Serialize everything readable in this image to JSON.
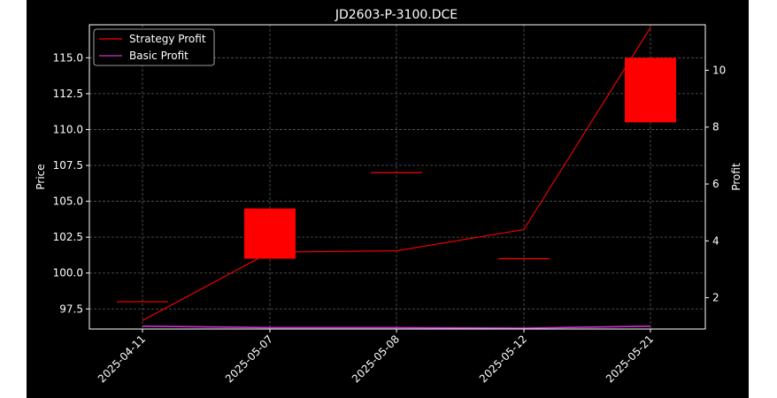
{
  "chart_data": {
    "type": "candlestick+line",
    "title": "JD2603-P-3100.DCE",
    "xlabel": "",
    "ylabel_left": "Price",
    "ylabel_right": "Profit",
    "categories": [
      "2025-04-11",
      "2025-05-07",
      "2025-05-08",
      "2025-05-12",
      "2025-05-21"
    ],
    "ylim_left": [
      96.1,
      117.3
    ],
    "yticks_left": [
      "97.5",
      "100.0",
      "102.5",
      "105.0",
      "107.5",
      "110.0",
      "112.5",
      "115.0"
    ],
    "ylim_right": [
      0.9,
      11.6
    ],
    "yticks_right": [
      "2",
      "4",
      "6",
      "8",
      "10"
    ],
    "grid": true,
    "legend_position": "top-left",
    "candles": [
      {
        "date": "2025-04-11",
        "open": 98.0,
        "close": 98.0
      },
      {
        "date": "2025-05-07",
        "open": 104.5,
        "close": 101.0
      },
      {
        "date": "2025-05-08",
        "open": 107.0,
        "close": 107.0
      },
      {
        "date": "2025-05-12",
        "open": 101.0,
        "close": 101.0
      },
      {
        "date": "2025-05-21",
        "open": 115.0,
        "close": 110.5
      }
    ],
    "candle_color": "#ff0000",
    "series": [
      {
        "name": "Strategy Profit",
        "color": "#ff0000",
        "values": [
          1.2,
          3.6,
          3.65,
          4.4,
          11.5
        ]
      },
      {
        "name": "Basic Profit",
        "color": "#cc33cc",
        "values": [
          1.0,
          0.95,
          0.95,
          0.93,
          1.0
        ]
      }
    ]
  }
}
